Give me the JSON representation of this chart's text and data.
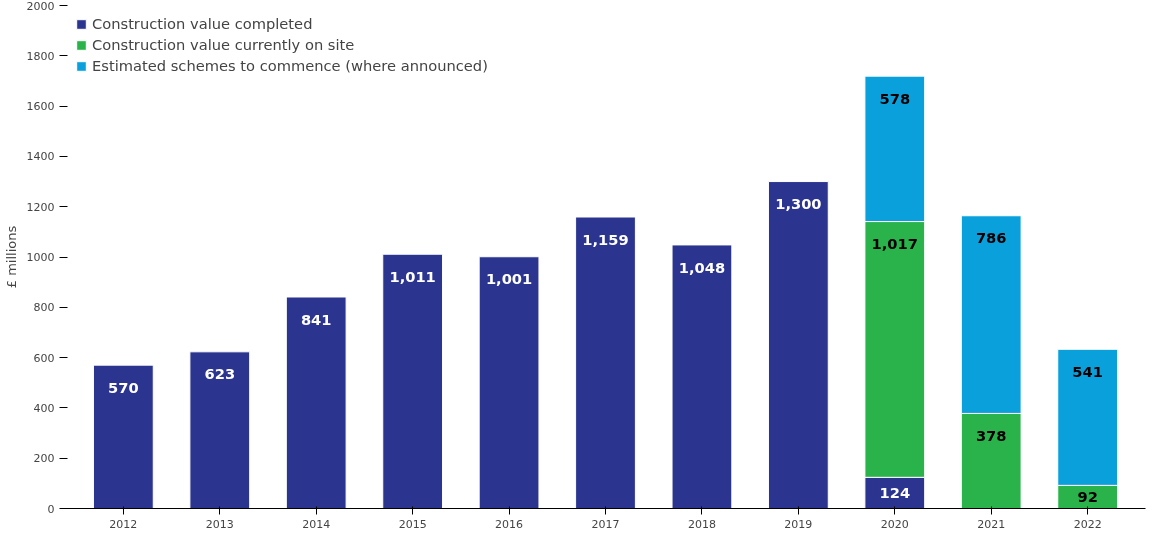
{
  "chart_data": {
    "type": "bar",
    "stacked": true,
    "ylabel": "£ millions",
    "categories": [
      "2012",
      "2013",
      "2014",
      "2015",
      "2016",
      "2017",
      "2018",
      "2019",
      "2020",
      "2021",
      "2022"
    ],
    "series": [
      {
        "name": "Construction value completed",
        "color": "#2b3590",
        "values": [
          570,
          623,
          841,
          1011,
          1001,
          1159,
          1048,
          1300,
          124,
          null,
          null
        ],
        "value_labels": [
          "570",
          "623",
          "841",
          "1,011",
          "1,001",
          "1,159",
          "1,048",
          "1,300",
          "124",
          null,
          null
        ]
      },
      {
        "name": "Construction value currently on site",
        "color": "#2bb34b",
        "values": [
          null,
          null,
          null,
          null,
          null,
          null,
          null,
          null,
          1017,
          378,
          92
        ],
        "value_labels": [
          null,
          null,
          null,
          null,
          null,
          null,
          null,
          null,
          "1,017",
          "378",
          "92"
        ]
      },
      {
        "name": "Estimated schemes to commence (where announced)",
        "color": "#0aa0dc",
        "values": [
          null,
          null,
          null,
          null,
          null,
          null,
          null,
          null,
          578,
          786,
          541
        ],
        "value_labels": [
          null,
          null,
          null,
          null,
          null,
          null,
          null,
          null,
          "578",
          "786",
          "541"
        ]
      }
    ],
    "ylim": [
      0,
      2000
    ],
    "yticks": [
      0,
      200,
      400,
      600,
      800,
      1000,
      1200,
      1400,
      1600,
      1800,
      2000
    ],
    "grid": false,
    "legend": "top left"
  }
}
